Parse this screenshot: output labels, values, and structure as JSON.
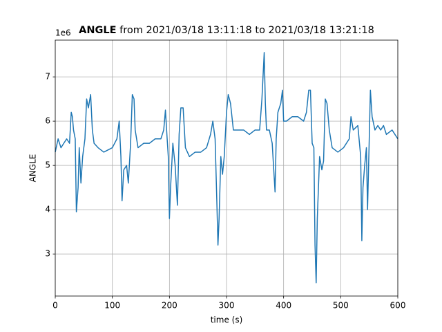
{
  "chart_data": {
    "type": "line",
    "title_bold": "ANGLE",
    "title_rest": " from 2021/03/18 13:11:18 to 2021/03/18 13:21:18",
    "x_label": "time (s)",
    "y_label": "ANGLE",
    "y_offset_label": "1e6",
    "xlim": [
      0,
      600
    ],
    "ylim": [
      2.05,
      7.83
    ],
    "xticks": [
      0,
      100,
      200,
      300,
      400,
      500,
      600
    ],
    "yticks": [
      3,
      4,
      5,
      6,
      7
    ],
    "grid": true,
    "series": [
      {
        "color": "#1f77b4",
        "x": [
          0,
          5,
          10,
          15,
          20,
          25,
          28,
          30,
          32,
          35,
          37,
          40,
          42,
          45,
          48,
          52,
          55,
          58,
          62,
          65,
          68,
          75,
          85,
          100,
          108,
          112,
          115,
          117,
          120,
          125,
          128,
          132,
          135,
          138,
          140,
          145,
          155,
          165,
          175,
          185,
          190,
          193,
          196,
          198,
          200,
          202,
          206,
          210,
          214,
          217,
          220,
          224,
          228,
          235,
          245,
          255,
          265,
          272,
          276,
          280,
          283,
          285,
          287,
          290,
          293,
          296,
          300,
          303,
          307,
          312,
          320,
          330,
          340,
          350,
          358,
          362,
          366,
          368,
          370,
          375,
          380,
          385,
          387,
          390,
          395,
          398,
          400,
          405,
          415,
          425,
          435,
          440,
          444,
          447,
          450,
          453,
          455,
          457,
          459,
          461,
          463,
          467,
          470,
          473,
          476,
          480,
          485,
          495,
          505,
          515,
          518,
          522,
          530,
          535,
          537,
          539,
          542,
          545,
          547,
          550,
          552,
          555,
          560,
          565,
          570,
          575,
          580,
          590,
          600
        ],
        "values": [
          5.3,
          5.6,
          5.4,
          5.5,
          5.6,
          5.5,
          6.2,
          6.1,
          5.8,
          5.6,
          3.95,
          4.5,
          5.4,
          4.6,
          5.2,
          5.6,
          6.5,
          6.3,
          6.6,
          5.8,
          5.5,
          5.4,
          5.3,
          5.4,
          5.6,
          6.0,
          5.2,
          4.2,
          4.9,
          5.0,
          4.6,
          5.5,
          6.6,
          6.5,
          5.8,
          5.4,
          5.5,
          5.5,
          5.6,
          5.6,
          5.8,
          6.25,
          5.6,
          5.2,
          3.8,
          4.5,
          5.5,
          5.0,
          4.1,
          5.7,
          6.3,
          6.3,
          5.4,
          5.2,
          5.3,
          5.3,
          5.4,
          5.7,
          6.0,
          5.6,
          4.2,
          3.2,
          3.8,
          5.2,
          4.8,
          5.2,
          6.2,
          6.6,
          6.4,
          5.8,
          5.8,
          5.8,
          5.7,
          5.8,
          5.8,
          6.5,
          7.55,
          6.4,
          5.8,
          5.8,
          5.5,
          4.4,
          5.6,
          6.2,
          6.4,
          6.7,
          6.0,
          6.0,
          6.1,
          6.1,
          6.0,
          6.2,
          6.7,
          6.7,
          5.5,
          5.4,
          3.2,
          2.35,
          3.8,
          4.5,
          5.2,
          4.9,
          5.1,
          6.5,
          6.4,
          5.8,
          5.4,
          5.3,
          5.4,
          5.6,
          6.1,
          5.8,
          5.9,
          5.2,
          3.3,
          4.5,
          5.0,
          5.4,
          4.0,
          5.6,
          6.7,
          6.1,
          5.8,
          5.9,
          5.8,
          5.9,
          5.7,
          5.8,
          5.6
        ]
      }
    ]
  }
}
